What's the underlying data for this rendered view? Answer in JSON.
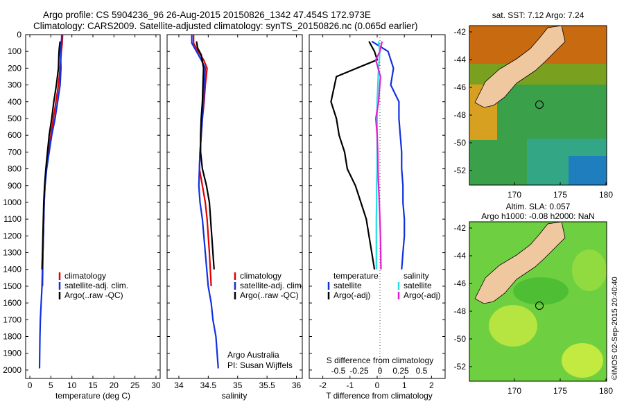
{
  "header": {
    "line1": "Argo profile: CS 5904236_96 26-Aug-2015 20150826_1342 47.454S 172.973E",
    "line2": "Climatology: CARS2009. Satellite-adjusted climatology: synTS_20150826.nc (0.065d earlier)"
  },
  "colors": {
    "climatology": "#e00000",
    "satellite": "#1030e0",
    "argo": "#000000",
    "satellite_salinity": "#20e0e8",
    "argo_salinity_diff": "#e020d0",
    "land": "#f0c8a0"
  },
  "depth_axis": {
    "ylim": [
      0,
      2050
    ],
    "ticks": [
      "0",
      "100",
      "200",
      "300",
      "400",
      "500",
      "600",
      "700",
      "800",
      "900",
      "1000",
      "1100",
      "1200",
      "1300",
      "1400",
      "1500",
      "1600",
      "1700",
      "1800",
      "1900",
      "2000"
    ]
  },
  "panels": {
    "temperature": {
      "xlabel": "temperature (deg C)",
      "ticks": [
        "0",
        "5",
        "10",
        "15",
        "20",
        "25",
        "30"
      ]
    },
    "salinity": {
      "xlabel": "salinity",
      "ticks": [
        "34",
        "34.5",
        "35",
        "35.5",
        "36"
      ],
      "note1": "Argo Australia",
      "note2": "PI: Susan Wijffels"
    },
    "difference": {
      "xlabel": "T difference from climatology",
      "ticks": [
        "-2",
        "-1",
        "0",
        "1",
        "2"
      ],
      "s_title": "S difference from climatology",
      "s_ticks": [
        "-0.5",
        "-0.25",
        "0",
        "0.25",
        "0.5"
      ],
      "legend_t_title": "temperature",
      "legend_s_title": "salinity"
    }
  },
  "legend": {
    "climatology": "climatology",
    "satellite": "satellite-adj. clim.",
    "argo": "Argo(..raw -QC)",
    "satellite_short": "satellite",
    "argo_adj": "Argo(-adj)"
  },
  "maps": {
    "sst_title": "sat. SST: 7.12 Argo: 7.24",
    "sla_title1": "Altim. SLA: 0.057",
    "sla_title2": "Argo h1000: -0.08 h2000: NaN",
    "lat_ticks": [
      "-42",
      "-44",
      "-46",
      "-48",
      "-50",
      "-52"
    ],
    "lon_ticks": [
      "170",
      "175",
      "180"
    ],
    "credit": "©IMOS 02-Sep-2015 20:40:40"
  },
  "chart_data": [
    {
      "type": "line",
      "title": "",
      "xlabel": "temperature (deg C)",
      "ylabel": "",
      "xlim": [
        -1,
        31
      ],
      "ylim": [
        0,
        2050
      ],
      "series": [
        {
          "name": "climatology",
          "x": [
            7.8,
            7.7,
            7.5,
            7.2,
            6.8,
            6.2,
            5.6,
            5.0,
            4.4,
            3.9,
            3.6,
            3.4,
            3.3,
            3.2,
            3.1,
            3.0
          ],
          "y": [
            0,
            50,
            100,
            200,
            300,
            400,
            500,
            600,
            700,
            800,
            900,
            1000,
            1100,
            1200,
            1300,
            1500
          ]
        },
        {
          "name": "satellite-adj. clim.",
          "x": [
            7.6,
            7.5,
            7.3,
            7.4,
            7.2,
            6.6,
            6.0,
            5.2,
            4.6,
            4.0,
            3.6,
            3.4,
            3.3,
            3.2,
            3.1,
            2.9,
            2.7,
            2.5,
            2.4,
            2.3
          ],
          "y": [
            0,
            50,
            100,
            200,
            300,
            400,
            500,
            600,
            700,
            800,
            900,
            1000,
            1100,
            1200,
            1300,
            1500,
            1600,
            1700,
            1800,
            1990
          ]
        },
        {
          "name": "Argo(..raw -QC)",
          "x": [
            7.2,
            7.0,
            6.9,
            6.8,
            6.3,
            5.7,
            5.2,
            4.6,
            4.2,
            3.8,
            3.5,
            3.3,
            3.2,
            3.1,
            3.0,
            2.9
          ],
          "y": [
            40,
            80,
            120,
            200,
            300,
            400,
            500,
            600,
            700,
            800,
            900,
            1000,
            1100,
            1200,
            1300,
            1400
          ]
        }
      ]
    },
    {
      "type": "line",
      "title": "",
      "xlabel": "salinity",
      "ylabel": "",
      "xlim": [
        33.8,
        36.1
      ],
      "ylim": [
        0,
        2050
      ],
      "series": [
        {
          "name": "climatology",
          "x": [
            34.25,
            34.25,
            34.33,
            34.42,
            34.48,
            34.45,
            34.43,
            34.4,
            34.38,
            34.36,
            34.35,
            34.4,
            34.45,
            34.48,
            34.52,
            34.55
          ],
          "y": [
            0,
            50,
            100,
            150,
            200,
            300,
            400,
            500,
            600,
            700,
            800,
            900,
            1000,
            1100,
            1300,
            1500
          ]
        },
        {
          "name": "satellite-adj. clim.",
          "x": [
            34.22,
            34.22,
            34.3,
            34.38,
            34.45,
            34.43,
            34.42,
            34.4,
            34.38,
            34.36,
            34.35,
            34.34,
            34.36,
            34.4,
            34.45,
            34.5,
            34.55,
            34.58,
            34.63,
            34.67
          ],
          "y": [
            0,
            50,
            100,
            150,
            200,
            300,
            400,
            500,
            600,
            700,
            800,
            900,
            1000,
            1100,
            1300,
            1500,
            1600,
            1700,
            1800,
            1990
          ]
        },
        {
          "name": "Argo(..raw -QC)",
          "x": [
            34.3,
            34.32,
            34.38,
            34.4,
            34.42,
            34.41,
            34.4,
            34.38,
            34.37,
            34.37,
            34.4,
            34.47,
            34.52,
            34.56,
            34.6
          ],
          "y": [
            40,
            80,
            120,
            160,
            200,
            300,
            400,
            500,
            600,
            700,
            800,
            900,
            1000,
            1200,
            1400
          ]
        }
      ]
    },
    {
      "type": "line",
      "title": "",
      "xlabel": "T difference from climatology",
      "ylabel": "",
      "xlim": [
        -2.5,
        2.5
      ],
      "ylim": [
        0,
        2050
      ],
      "series": [
        {
          "name": "temperature satellite",
          "x": [
            -0.2,
            0.4,
            0.6,
            0.5,
            0.8,
            0.8,
            0.85,
            0.9,
            0.9,
            0.95,
            0.95,
            1.0,
            1.0,
            0.95,
            0.9
          ],
          "y": [
            40,
            100,
            200,
            300,
            400,
            500,
            600,
            700,
            800,
            900,
            1000,
            1100,
            1200,
            1300,
            1400
          ]
        },
        {
          "name": "temperature Argo(-adj)",
          "x": [
            -0.3,
            -0.1,
            0.0,
            -1.5,
            -1.7,
            -1.5,
            -1.4,
            -1.2,
            -1.1,
            -0.8,
            -0.6,
            -0.4,
            -0.3,
            -0.2,
            -0.1
          ],
          "y": [
            40,
            100,
            150,
            250,
            400,
            500,
            600,
            700,
            800,
            900,
            1000,
            1100,
            1200,
            1300,
            1400
          ]
        },
        {
          "name": "salinity satellite",
          "x": [
            0.05,
            0.1,
            0.05,
            0.0,
            0.0,
            0.0,
            0.0,
            0.0,
            -0.02,
            -0.02,
            -0.03,
            -0.03,
            -0.03
          ],
          "y": [
            40,
            100,
            200,
            400,
            500,
            600,
            700,
            800,
            900,
            1000,
            1100,
            1200,
            1400
          ]
        },
        {
          "name": "salinity Argo(-adj)",
          "x": [
            0.18,
            0.1,
            -0.05,
            0.12,
            0.05,
            -0.05,
            0.0,
            0.02,
            0.03,
            0.05,
            0.08,
            0.1,
            0.12,
            0.14
          ],
          "y": [
            40,
            100,
            150,
            250,
            400,
            500,
            600,
            700,
            800,
            900,
            1000,
            1100,
            1200,
            1400
          ]
        }
      ]
    }
  ]
}
